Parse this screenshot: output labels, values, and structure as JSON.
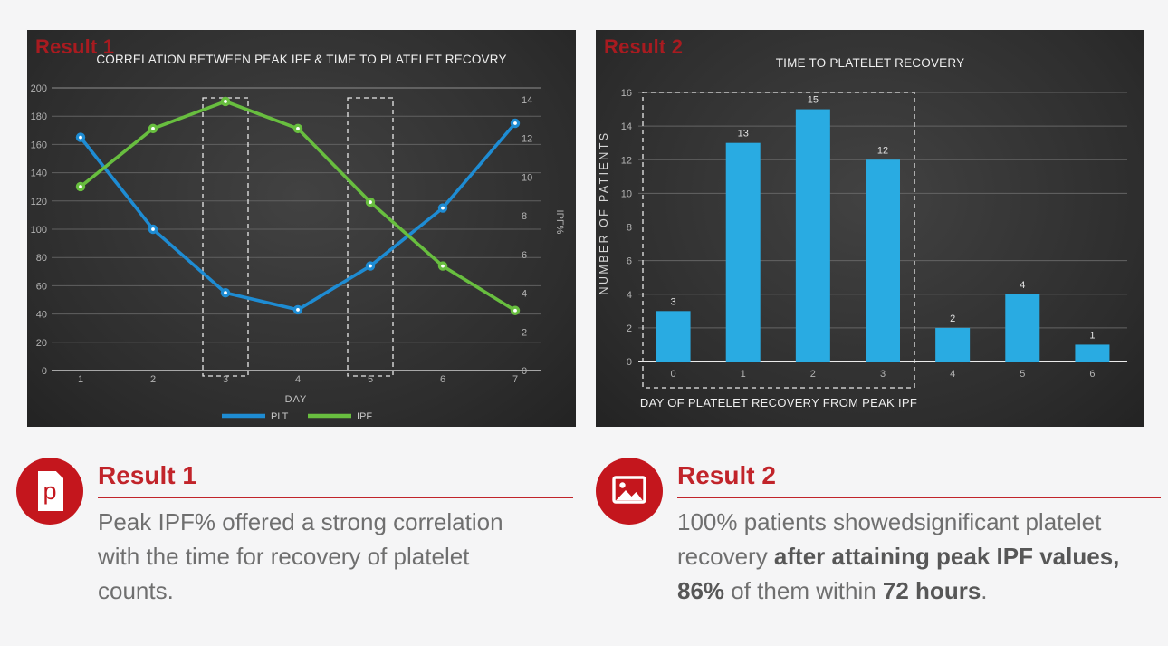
{
  "colors": {
    "page_background": "#f5f5f6",
    "panel_background": "#2d2d2d",
    "corner_label_red": "#a81b20",
    "heading_red": "#c1242a",
    "icon_red": "#c4161d",
    "body_gray": "#6f6f6f",
    "line_blue": "#1e8cd3",
    "line_green": "#68be3f",
    "bar_blue": "#29abe2"
  },
  "panel1": {
    "corner_label": "Result 1"
  },
  "panel2": {
    "corner_label": "Result 2"
  },
  "chart_data": [
    {
      "type": "line",
      "title": "CORRELATION BETWEEN PEAK IPF & TIME TO PLATELET RECOVRY",
      "x": [
        1,
        2,
        3,
        4,
        5,
        6,
        7
      ],
      "xlabel": "DAY",
      "series": [
        {
          "name": "PLT",
          "axis": "left",
          "color": "#1e8cd3",
          "values": [
            165,
            100,
            55,
            43,
            74,
            115,
            175
          ]
        },
        {
          "name": "IPF",
          "axis": "right",
          "color": "#68be3f",
          "values": [
            9.5,
            12.5,
            13.9,
            12.5,
            8.7,
            5.4,
            3.1
          ]
        }
      ],
      "left_axis": {
        "min": 0,
        "max": 200,
        "step": 20
      },
      "right_axis": {
        "label": "IPF%",
        "min": 0,
        "max": 14.6,
        "ticks": [
          0,
          2,
          4,
          6,
          8,
          10,
          12,
          14
        ]
      },
      "highlight_days": [
        3,
        5
      ],
      "grid": true,
      "legend_position": "bottom"
    },
    {
      "type": "bar",
      "title": "TIME TO PLATELET RECOVERY",
      "categories": [
        "0",
        "1",
        "2",
        "3",
        "4",
        "5",
        "6"
      ],
      "values": [
        3,
        13,
        15,
        12,
        2,
        4,
        1
      ],
      "bar_color": "#29abe2",
      "xlabel": "DAY OF PLATELET RECOVERY FROM PEAK IPF",
      "ylabel": "NUMBER OF PATIENTS",
      "ylim": [
        0,
        16
      ],
      "ystep": 2,
      "grid": true,
      "highlight_categories": [
        "0",
        "1",
        "2",
        "3"
      ]
    }
  ],
  "result1": {
    "heading": "Result 1",
    "icon": "document-icon",
    "icon_letter": "p",
    "body_lines": [
      [
        {
          "t": "Peak IPF% offered a strong correlation",
          "b": false
        }
      ],
      [
        {
          "t": "with the time for recovery of platelet",
          "b": false
        }
      ],
      [
        {
          "t": "counts.",
          "b": false
        }
      ]
    ]
  },
  "result2": {
    "heading": "Result 2",
    "icon": "image-icon",
    "body_lines": [
      [
        {
          "t": "100% patients showedsignificant platelet",
          "b": false
        }
      ],
      [
        {
          "t": "recovery ",
          "b": false
        },
        {
          "t": "after attaining peak IPF values,",
          "b": true
        }
      ],
      [
        {
          "t": "86%",
          "b": true
        },
        {
          "t": " of them within ",
          "b": false
        },
        {
          "t": "72 hours",
          "b": true
        },
        {
          "t": ".",
          "b": false
        }
      ]
    ]
  }
}
